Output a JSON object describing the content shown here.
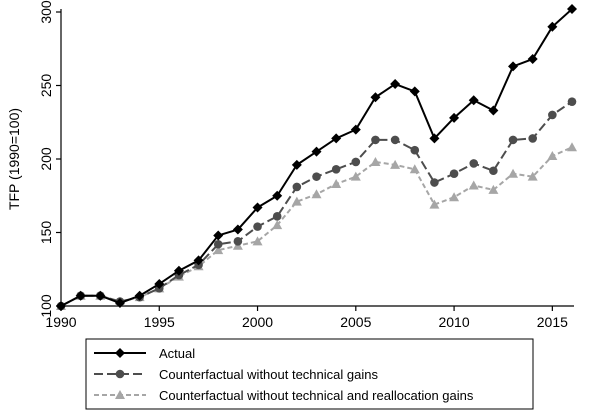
{
  "chart_data": {
    "type": "line",
    "ylabel": "TFP (1990=100)",
    "xlabel": "",
    "xlim": [
      1990,
      2016
    ],
    "ylim": [
      100,
      300
    ],
    "x_ticks": [
      1990,
      1995,
      2000,
      2005,
      2010,
      2015
    ],
    "y_ticks": [
      100,
      150,
      200,
      250,
      300
    ],
    "grid": false,
    "legend_placement": "bottom",
    "x": [
      1990,
      1991,
      1992,
      1993,
      1994,
      1995,
      1996,
      1997,
      1998,
      1999,
      2000,
      2001,
      2002,
      2003,
      2004,
      2005,
      2006,
      2007,
      2008,
      2009,
      2010,
      2011,
      2012,
      2013,
      2014,
      2015,
      2016
    ],
    "series": [
      {
        "name": "Actual",
        "color": "#000000",
        "marker": "diamond",
        "dash": "solid",
        "values": [
          100,
          107,
          107,
          102,
          107,
          115,
          124,
          131,
          148,
          152,
          167,
          175,
          196,
          205,
          214,
          220,
          242,
          251,
          246,
          214,
          228,
          240,
          233,
          263,
          268,
          290,
          302
        ]
      },
      {
        "name": "Counterfactual without technical gains",
        "color": "#4d4d4d",
        "marker": "circle",
        "dash": "long-dash",
        "values": [
          100,
          107,
          107,
          103,
          106,
          112,
          121,
          128,
          142,
          144,
          154,
          161,
          181,
          188,
          193,
          198,
          213,
          213,
          206,
          184,
          190,
          197,
          192,
          213,
          214,
          230,
          239
        ]
      },
      {
        "name": "Counterfactual without technical and reallocation gains",
        "color": "#a6a6a6",
        "marker": "triangle",
        "dash": "short-dash",
        "values": [
          100,
          107,
          107,
          103,
          106,
          112,
          120,
          127,
          138,
          141,
          144,
          155,
          171,
          176,
          183,
          188,
          198,
          196,
          193,
          169,
          174,
          182,
          179,
          190,
          188,
          202,
          208
        ]
      }
    ]
  }
}
